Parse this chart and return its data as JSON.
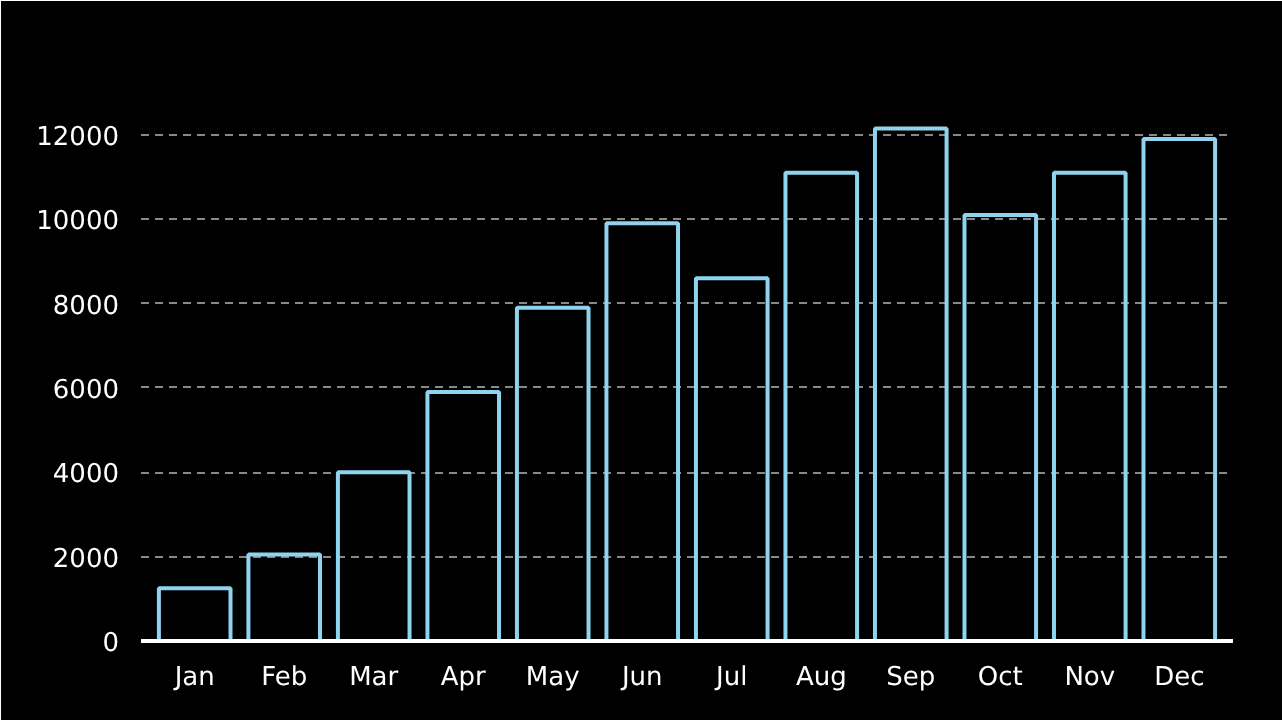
{
  "chart_data": {
    "type": "bar",
    "categories": [
      "Jan",
      "Feb",
      "Mar",
      "Apr",
      "May",
      "Jun",
      "Jul",
      "Aug",
      "Sep",
      "Oct",
      "Nov",
      "Dec"
    ],
    "values": [
      1250,
      2050,
      4000,
      5900,
      7900,
      9900,
      8600,
      11100,
      12150,
      10100,
      11100,
      11900
    ],
    "color": "#8fd3ee",
    "ylim": [
      0,
      12800
    ],
    "yticks": [
      0,
      2000,
      4000,
      6000,
      8000,
      10000,
      12000
    ],
    "grid": "y"
  }
}
